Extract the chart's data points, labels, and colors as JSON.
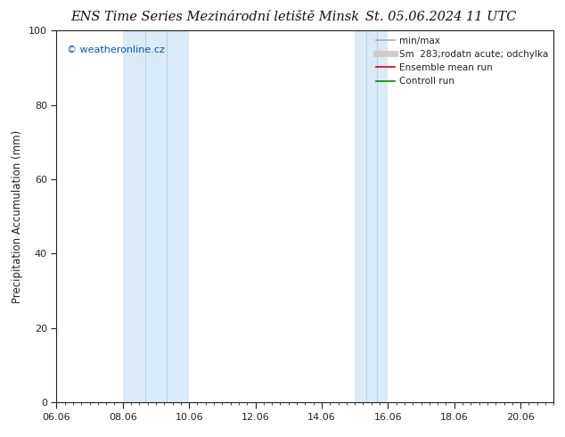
{
  "title": "ENS Time Series Mezinárodní letiště Minsk",
  "title2": "St. 05.06.2024 11 UTC",
  "ylabel": "Precipitation Accumulation (mm)",
  "ylim": [
    0,
    100
  ],
  "xlim": [
    0,
    15
  ],
  "xtick_labels": [
    "06.06",
    "08.06",
    "10.06",
    "12.06",
    "14.06",
    "16.06",
    "18.06",
    "20.06"
  ],
  "xtick_positions": [
    0,
    2,
    4,
    6,
    8,
    10,
    12,
    14
  ],
  "ytick_labels": [
    "0",
    "20",
    "40",
    "60",
    "80",
    "100"
  ],
  "ytick_positions": [
    0,
    20,
    40,
    60,
    80,
    100
  ],
  "shaded_regions": [
    {
      "x_start": 2.0,
      "x_end": 4.0
    },
    {
      "x_start": 9.0,
      "x_end": 10.0
    }
  ],
  "shaded_color": "#daeaf6",
  "shaded_line_color": "#b8d4ea",
  "background_color": "#ffffff",
  "watermark_text": "© weatheronline.cz",
  "watermark_color": "#0055bb",
  "legend_entries": [
    {
      "label": "min/max",
      "color": "#aaaaaa",
      "lw": 1.2,
      "style": "-"
    },
    {
      "label": "Sm  283;rodatn acute; odchylka",
      "color": "#cccccc",
      "lw": 5,
      "style": "-"
    },
    {
      "label": "Ensemble mean run",
      "color": "#dd0000",
      "lw": 1.2,
      "style": "-"
    },
    {
      "label": "Controll run",
      "color": "#008800",
      "lw": 1.2,
      "style": "-"
    }
  ],
  "grid_color": "#dddddd",
  "tick_color": "#222222",
  "spine_color": "#222222",
  "title_fontsize": 10.5,
  "label_fontsize": 8.5,
  "tick_fontsize": 8,
  "legend_fontsize": 7.5
}
